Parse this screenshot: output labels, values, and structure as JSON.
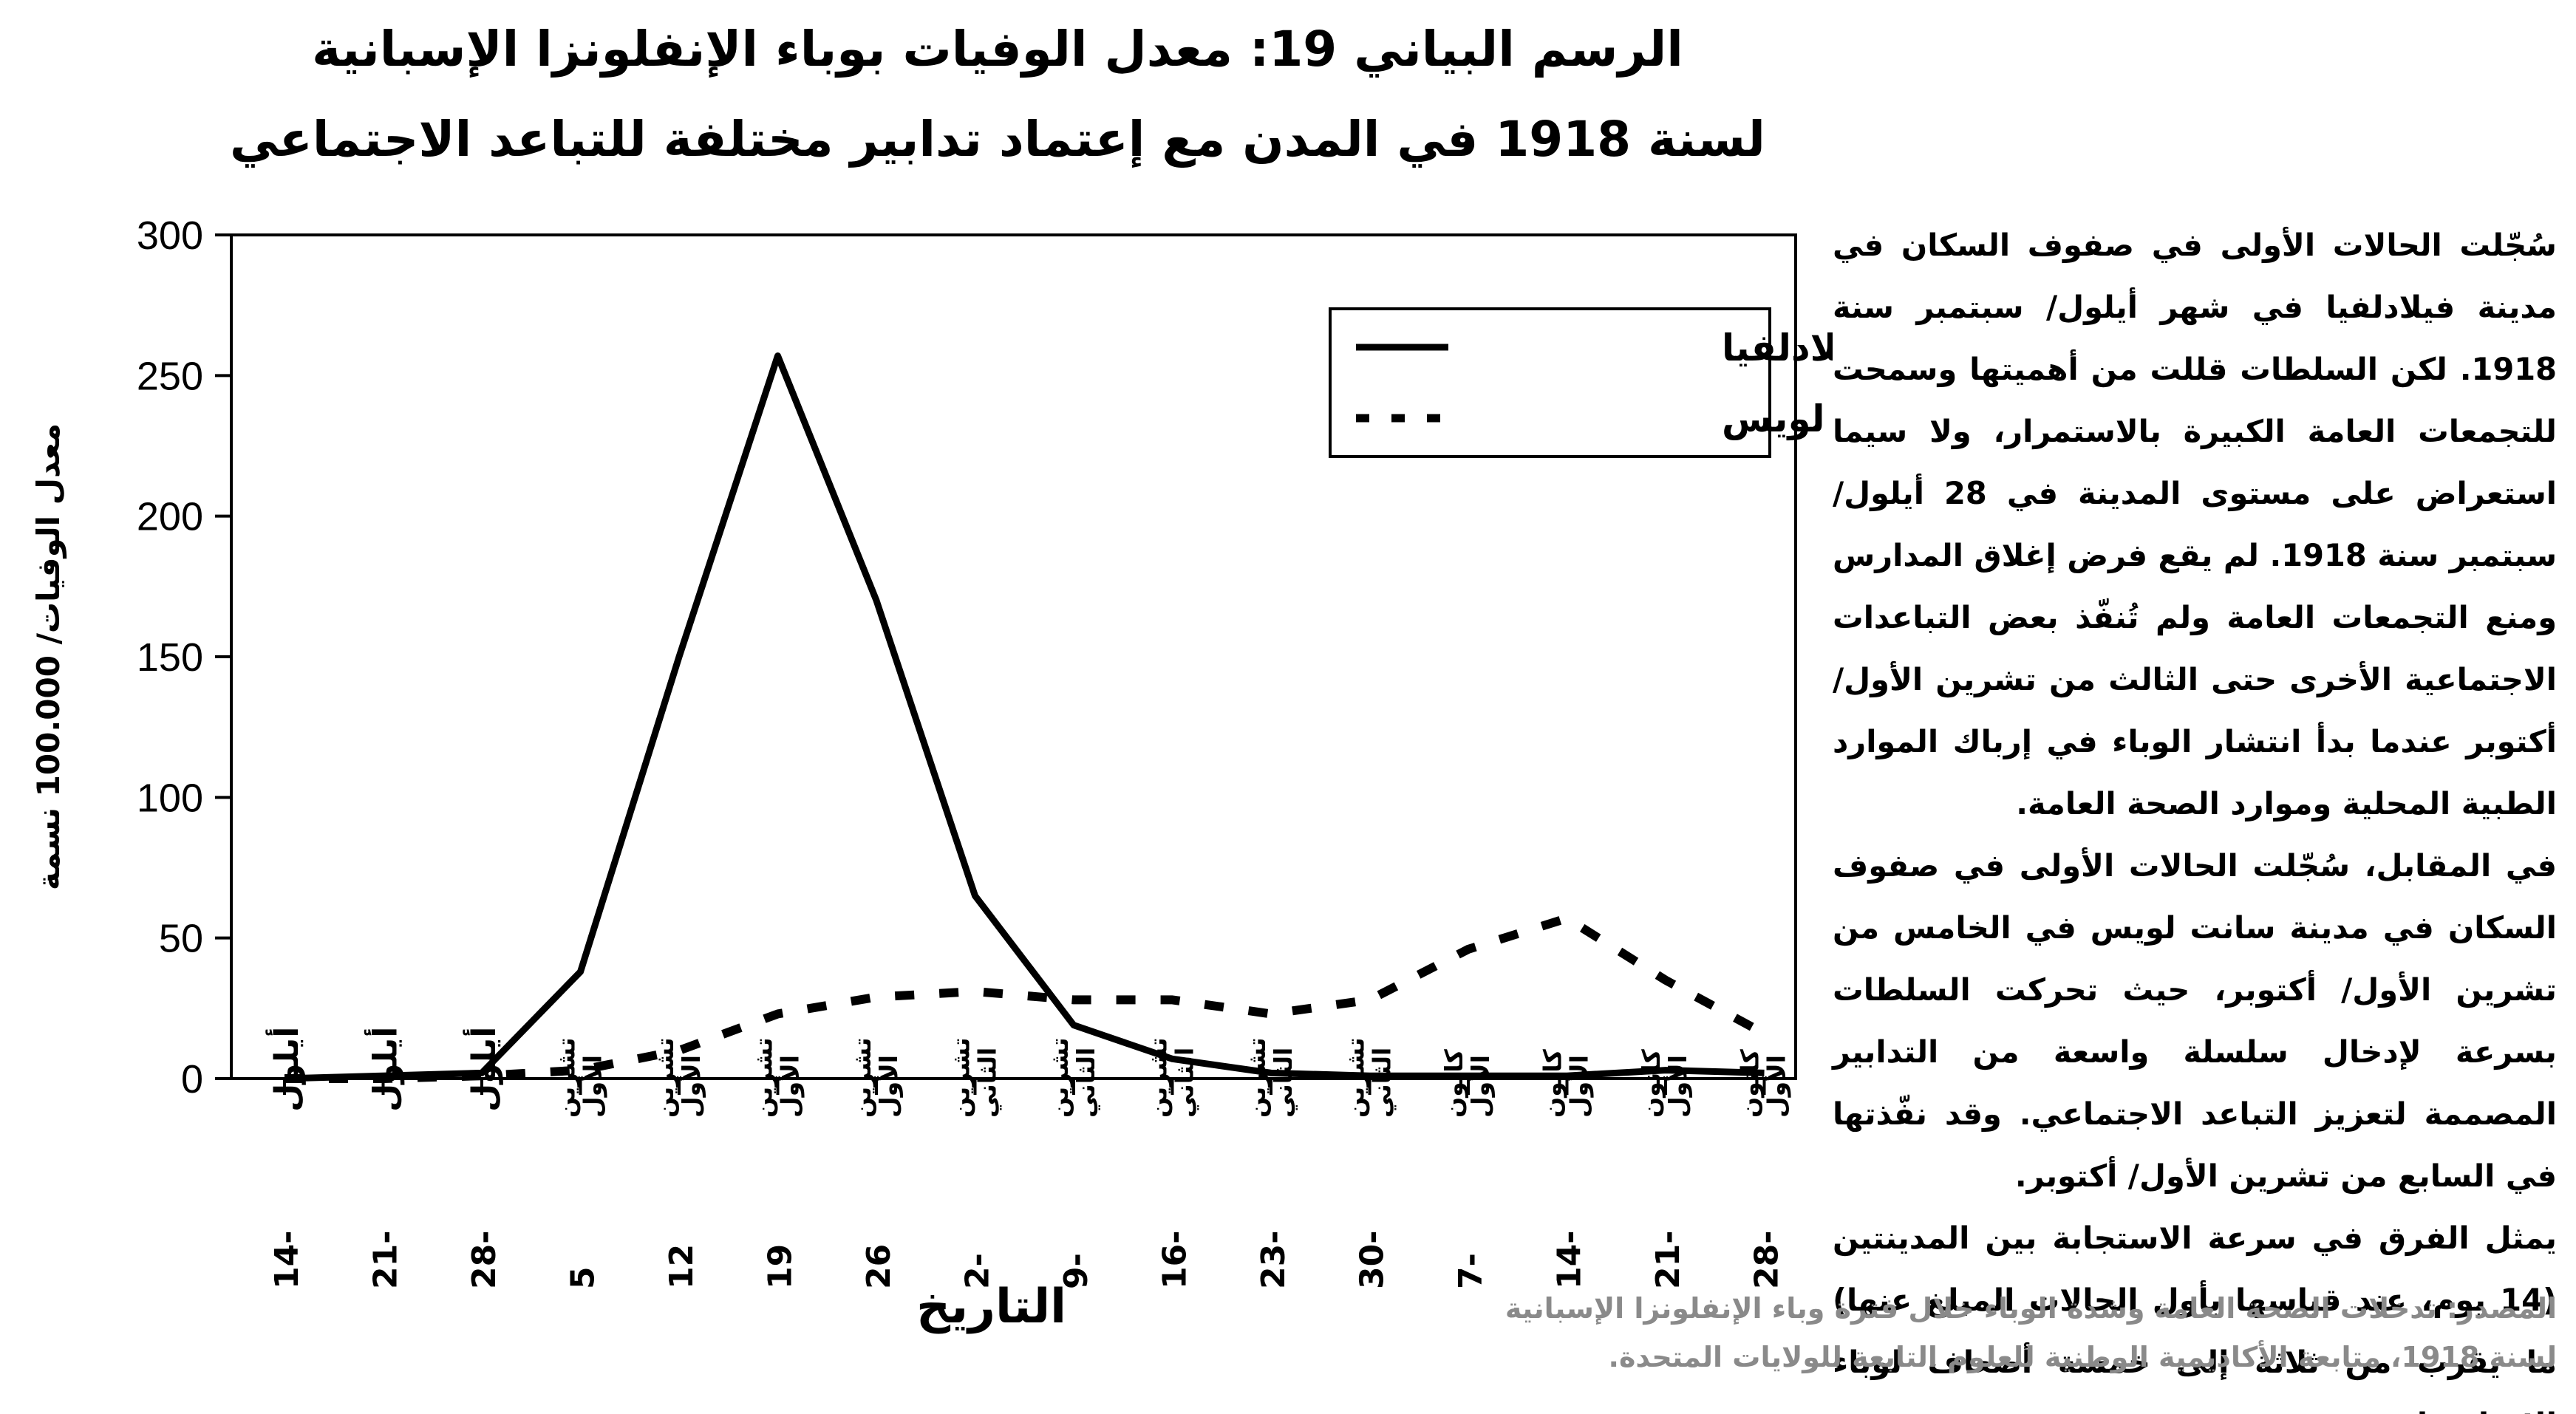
{
  "title": {
    "line1": "الرسم البياني 19: معدل الوفيات بوباء الإنفلونزا الإسبانية",
    "line2": "لسنة 1918 في المدن مع إعتماد تدابير مختلفة للتباعد الاجتماعي"
  },
  "side_text": {
    "paragraph1": "سُجّلت الحالات الأولى في صفوف السكان في مدينة فيلادلفيا في شهر أيلول/ سبتمبر سنة 1918. لكن السلطات قللت من أهميتها وسمحت للتجمعات العامة الكبيرة بالاستمرار، ولا سيما استعراض على مستوى المدينة في 28 أيلول/ سبتمبر سنة 1918. لم يقع فرض إغلاق المدارس ومنع التجمعات العامة ولم تُنفّذ بعض التباعدات الاجتماعية الأخرى حتى الثالث من تشرين الأول/ أكتوبر عندما بدأ انتشار الوباء في إرباك الموارد الطبية المحلية وموارد الصحة العامة.",
    "paragraph2": "في المقابل، سُجّلت الحالات الأولى في صفوف السكان في مدينة سانت لويس في الخامس من تشرين الأول/ أكتوبر، حيث تحركت السلطات بسرعة لإدخال سلسلة واسعة من التدابير المصممة لتعزيز التباعد الاجتماعي. وقد نفّذتها في السابع من تشرين الأول/ أكتوبر.",
    "paragraph3": "يمثل الفرق في سرعة الاستجابة بين المدينتين (14 يوم، عند قياسها بأول الحالات المبلغ عنها) ما يقرب من ثلاثة إلى خمسة أضعاف لوباء الإنفلونزا"
  },
  "source": {
    "line1": "المصدر: تدخلات الصحة العامة وشدة الوباء خلال فترة وباء الإنفلونزا الإسبانية",
    "line2": "لسنة 1918، متابعة الأكاديمية الوطنية للعلوم التابعة للولايات المتحدة."
  },
  "chart_data": {
    "type": "line",
    "title": "",
    "xlabel": "التاريخ",
    "ylabel": "معدل الوفيات/ 100.000 نسمة",
    "ylim": [
      0,
      300
    ],
    "yticks": [
      0,
      50,
      100,
      150,
      200,
      250,
      300
    ],
    "grid": false,
    "legend_position": "top-right",
    "categories": [
      {
        "day": "14-",
        "month": "أيلول"
      },
      {
        "day": "21-",
        "month": "أيلول"
      },
      {
        "day": "28-",
        "month": "أيلول"
      },
      {
        "day": "5",
        "month": "تشرين الأول"
      },
      {
        "day": "12",
        "month": "تشرين الأول"
      },
      {
        "day": "19",
        "month": "تشرين الأول"
      },
      {
        "day": "26",
        "month": "تشرين الأول"
      },
      {
        "day": "2-",
        "month": "تشرين الثاني"
      },
      {
        "day": "9-",
        "month": "تشرين الثاني"
      },
      {
        "day": "16-",
        "month": "تشرين الثاني"
      },
      {
        "day": "23-",
        "month": "تشرين الثاني"
      },
      {
        "day": "30-",
        "month": "تشرين الثاني"
      },
      {
        "day": "7-",
        "month": "كانون الأول"
      },
      {
        "day": "14-",
        "month": "كانون الأول"
      },
      {
        "day": "21-",
        "month": "كانون الأول"
      },
      {
        "day": "28-",
        "month": "كانون الأول"
      }
    ],
    "series": [
      {
        "name": "فيلادلفيا",
        "style": "solid",
        "color": "#000000",
        "values": [
          0,
          1,
          2,
          38,
          150,
          257,
          170,
          65,
          19,
          7,
          2,
          1,
          1,
          1,
          3,
          2
        ]
      },
      {
        "name": "سانت لويس",
        "style": "dashed",
        "color": "#000000",
        "values": [
          0,
          0,
          1,
          3,
          10,
          23,
          29,
          31,
          28,
          28,
          23,
          28,
          46,
          57,
          35,
          16
        ]
      }
    ]
  }
}
